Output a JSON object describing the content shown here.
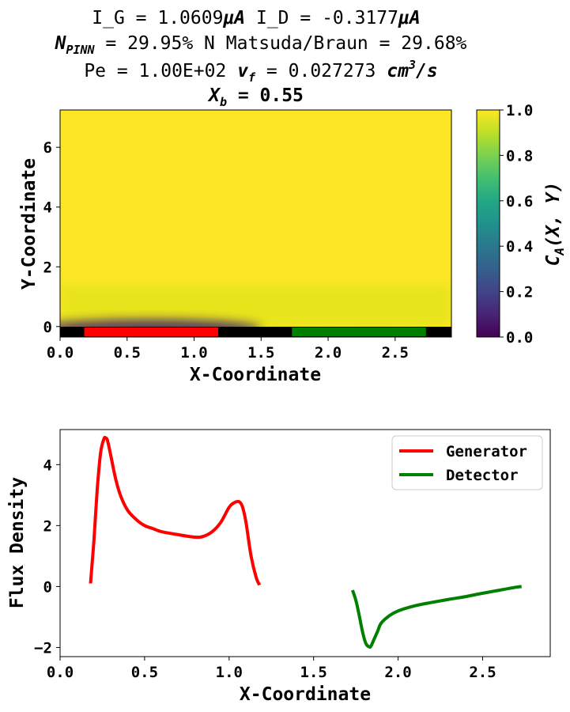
{
  "title": {
    "line1": {
      "a": "I_G = 1.0609",
      "a_unit": "μA",
      "b": " I_D = -0.3177",
      "b_unit": "μA"
    },
    "line2": {
      "n_label": "N",
      "n_sub": "PINN",
      "n_value": " = 29.95% N Matsuda/Braun = 29.68%"
    },
    "line3": {
      "pe": "Pe = 1.00E+02 ",
      "vf": "v",
      "vf_sub": "f",
      "vf_value": " = 0.027273 ",
      "unit": "cm",
      "unit_sup": "3",
      "unit_tail": "/s"
    },
    "line4": {
      "xb": "X",
      "xb_sub": "b",
      "xb_value": " = 0.55"
    }
  },
  "chart_data": [
    {
      "type": "heatmap",
      "xlabel": "X-Coordinate",
      "ylabel": "Y-Coordinate",
      "xlim": [
        0.0,
        2.92
      ],
      "ylim": [
        -0.35,
        7.25
      ],
      "xticks": [
        0.0,
        0.5,
        1.0,
        1.5,
        2.0,
        2.5
      ],
      "xtick_labels": [
        "0.0",
        "0.5",
        "1.0",
        "1.5",
        "2.0",
        "2.5"
      ],
      "yticks": [
        0,
        2,
        4,
        6
      ],
      "ytick_labels": [
        "0",
        "2",
        "4",
        "6"
      ],
      "colormap": "viridis",
      "colorbar": {
        "label": "C_A(X, Y)",
        "label_main": "C",
        "label_sub": "A",
        "label_tail": "(X, Y)",
        "range": [
          0.0,
          1.0
        ],
        "ticks": [
          "0.0",
          "0.2",
          "0.4",
          "0.6",
          "0.8",
          "1.0"
        ]
      },
      "electrodes": [
        {
          "name": "generator",
          "x_start": 0.18,
          "x_end": 1.18,
          "color": "#ff0000"
        },
        {
          "name": "detector",
          "x_start": 1.73,
          "x_end": 2.73,
          "color": "#008000"
        }
      ],
      "wall_color": "#000000"
    },
    {
      "type": "line",
      "xlabel": "X-Coordinate",
      "ylabel": "Flux Density",
      "xlim": [
        0.0,
        2.9
      ],
      "ylim": [
        -2.3,
        5.15
      ],
      "xticks": [
        0.0,
        0.5,
        1.0,
        1.5,
        2.0,
        2.5
      ],
      "xtick_labels": [
        "0.0",
        "0.5",
        "1.0",
        "1.5",
        "2.0",
        "2.5"
      ],
      "yticks": [
        -2,
        0,
        2,
        4
      ],
      "ytick_labels": [
        "−2",
        "0",
        "2",
        "4"
      ],
      "legend_position": "upper right",
      "series": [
        {
          "name": "Generator",
          "color": "#ff0000",
          "x": [
            0.18,
            0.2,
            0.22,
            0.24,
            0.26,
            0.27,
            0.28,
            0.3,
            0.33,
            0.36,
            0.4,
            0.45,
            0.5,
            0.55,
            0.6,
            0.7,
            0.8,
            0.85,
            0.9,
            0.95,
            1.0,
            1.03,
            1.06,
            1.08,
            1.1,
            1.13,
            1.16,
            1.18
          ],
          "y": [
            0.1,
            1.5,
            3.2,
            4.4,
            4.85,
            4.87,
            4.8,
            4.3,
            3.5,
            2.95,
            2.5,
            2.2,
            2.0,
            1.9,
            1.8,
            1.7,
            1.62,
            1.65,
            1.8,
            2.1,
            2.6,
            2.75,
            2.78,
            2.6,
            2.1,
            1.0,
            0.3,
            0.05
          ]
        },
        {
          "name": "Detector",
          "color": "#008000",
          "x": [
            1.73,
            1.75,
            1.77,
            1.79,
            1.81,
            1.83,
            1.84,
            1.86,
            1.88,
            1.9,
            1.95,
            2.0,
            2.1,
            2.2,
            2.3,
            2.4,
            2.5,
            2.6,
            2.7,
            2.73
          ],
          "y": [
            -0.12,
            -0.45,
            -0.95,
            -1.5,
            -1.88,
            -1.98,
            -1.95,
            -1.7,
            -1.45,
            -1.2,
            -0.95,
            -0.8,
            -0.63,
            -0.52,
            -0.42,
            -0.33,
            -0.22,
            -0.12,
            -0.02,
            0.0
          ]
        }
      ]
    }
  ]
}
